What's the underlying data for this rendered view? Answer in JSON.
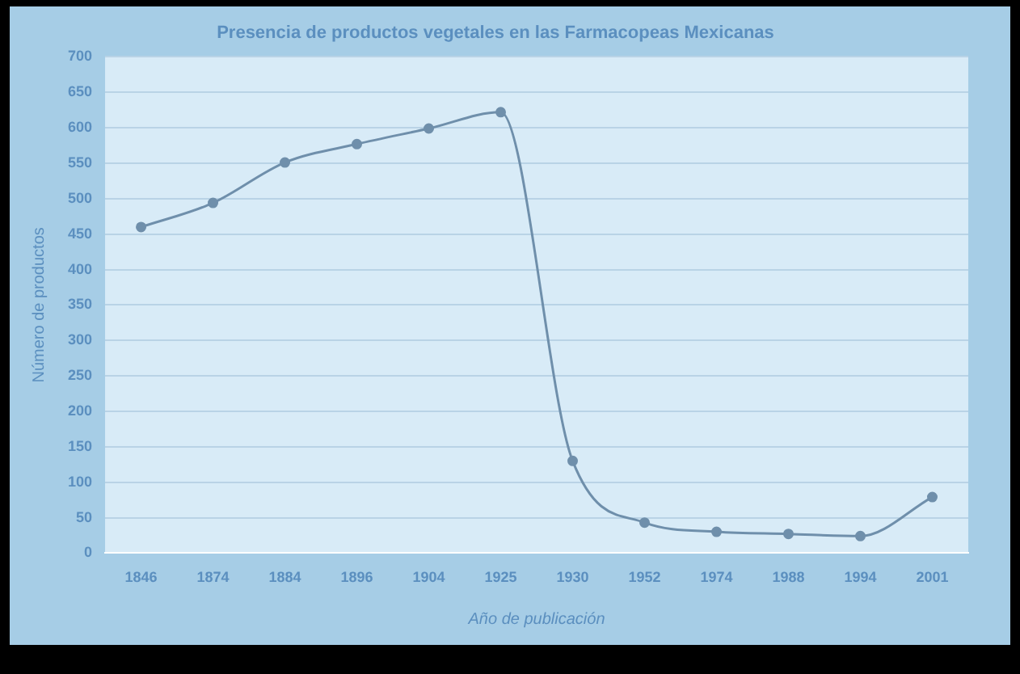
{
  "chart_data": {
    "type": "line",
    "title": "Presencia de productos vegetales en las Farmacopeas Mexicanas",
    "xlabel": "Año de publicación",
    "ylabel": "Número de productos",
    "categories": [
      "1846",
      "1874",
      "1884",
      "1896",
      "1904",
      "1925",
      "1930",
      "1952",
      "1974",
      "1988",
      "1994",
      "2001"
    ],
    "series": [
      {
        "color": "#6f8fab",
        "values": [
          460,
          494,
          551,
          577,
          599,
          622,
          130,
          43,
          30,
          27,
          24,
          79
        ]
      }
    ],
    "ylim": [
      0,
      700
    ],
    "yticks": [
      0,
      50,
      100,
      150,
      200,
      250,
      300,
      350,
      400,
      450,
      500,
      550,
      600,
      650,
      700
    ],
    "grid": "y",
    "legend": false,
    "marker": "circle",
    "line_style": "solid"
  }
}
